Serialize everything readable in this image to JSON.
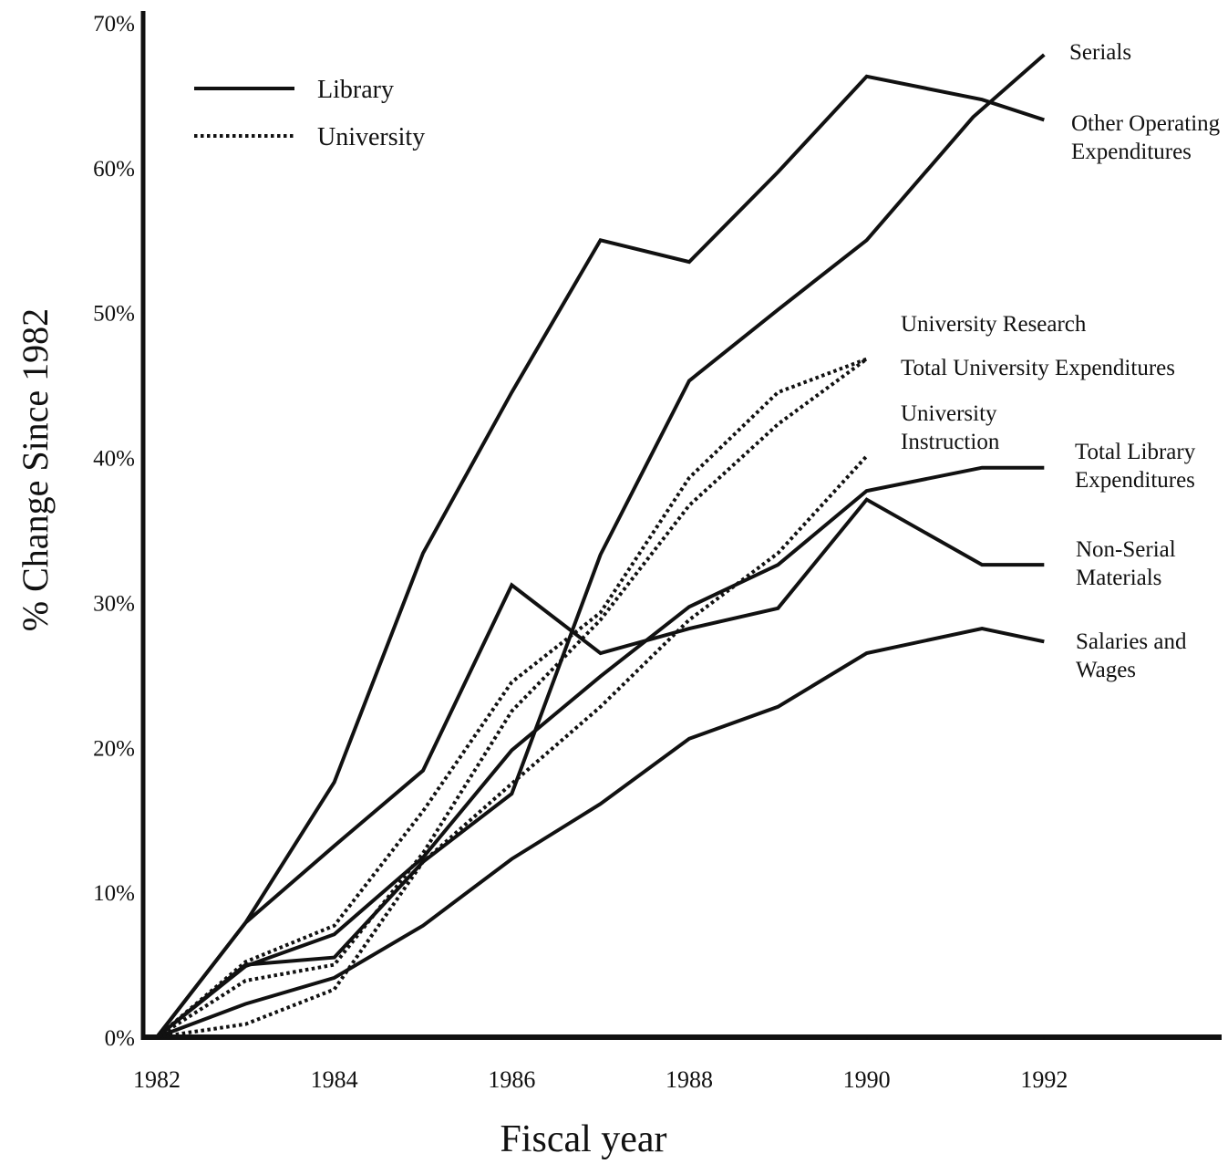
{
  "chart_data": {
    "type": "line",
    "x_label": "Fiscal year",
    "y_label": "% Change Since 1982",
    "xlim": [
      1982,
      1994
    ],
    "ylim": [
      0,
      70
    ],
    "xticks": [
      1982,
      1984,
      1986,
      1988,
      1990,
      1992
    ],
    "yticks": [
      {
        "value": 0,
        "label": "0%"
      },
      {
        "value": 10,
        "label": "10%"
      },
      {
        "value": 20,
        "label": "20%"
      },
      {
        "value": 30,
        "label": "30%"
      },
      {
        "value": 40,
        "label": "40%"
      },
      {
        "value": 50,
        "label": "50%"
      },
      {
        "value": 60,
        "label": "60%"
      },
      {
        "value": 70,
        "label": "70%"
      }
    ],
    "legend": [
      {
        "name": "Library",
        "style": "solid"
      },
      {
        "name": "University",
        "style": "dotted"
      }
    ],
    "series": [
      {
        "name": "Serials",
        "color": "#111111",
        "style": "solid",
        "x": [
          1982,
          1983,
          1984,
          1985,
          1986,
          1987,
          1988,
          1989,
          1990,
          1991.2,
          1992
        ],
        "values": [
          0,
          5,
          5.5,
          12.1,
          16.8,
          33.3,
          45.3,
          50.2,
          55,
          63.5,
          67.8
        ]
      },
      {
        "name": "Other Operating Expenditures",
        "color": "#111111",
        "style": "solid",
        "x": [
          1982,
          1983,
          1984,
          1985,
          1986,
          1987,
          1988,
          1989,
          1990,
          1991.3,
          1992
        ],
        "values": [
          0,
          7.9,
          17.6,
          33.4,
          44.5,
          55,
          53.5,
          59.7,
          66.3,
          64.7,
          63.3
        ]
      },
      {
        "name": "Total Library Expenditures",
        "color": "#111111",
        "style": "solid",
        "x": [
          1982,
          1983,
          1984,
          1985,
          1986,
          1987,
          1988,
          1989,
          1990,
          1991.3,
          1992
        ],
        "values": [
          0,
          4.9,
          7.1,
          12.4,
          19.8,
          24.9,
          29.7,
          32.6,
          37.7,
          39.3,
          39.3
        ]
      },
      {
        "name": "Non-Serial Materials",
        "color": "#111111",
        "style": "solid",
        "x": [
          1982,
          1983,
          1984,
          1985,
          1986,
          1987,
          1988,
          1989,
          1990,
          1991.3,
          1992
        ],
        "values": [
          0,
          7.9,
          13.2,
          18.4,
          31.2,
          26.5,
          28.2,
          29.6,
          37.1,
          32.6,
          32.6
        ]
      },
      {
        "name": "Salaries and Wages",
        "color": "#111111",
        "style": "solid",
        "x": [
          1982,
          1983,
          1984,
          1985,
          1986,
          1987,
          1988,
          1989,
          1990,
          1991.3,
          1992
        ],
        "values": [
          0,
          2.3,
          4.1,
          7.7,
          12.3,
          16.1,
          20.6,
          22.8,
          26.5,
          28.2,
          27.3
        ]
      },
      {
        "name": "University Research",
        "color": "#111111",
        "style": "dotted",
        "x": [
          1982,
          1983,
          1984,
          1985,
          1986,
          1987,
          1988,
          1989,
          1990
        ],
        "values": [
          0,
          5.2,
          7.7,
          15.6,
          24.5,
          29.3,
          38.6,
          44.5,
          46.8
        ]
      },
      {
        "name": "Total University Expenditures",
        "color": "#111111",
        "style": "dotted",
        "x": [
          1982,
          1983,
          1984,
          1985,
          1986,
          1987,
          1988,
          1989,
          1990
        ],
        "values": [
          0,
          3.9,
          5,
          12.7,
          22.5,
          28.8,
          36.7,
          42.3,
          46.8
        ]
      },
      {
        "name": "University Instruction",
        "color": "#111111",
        "style": "dotted",
        "x": [
          1982,
          1983,
          1984,
          1985,
          1986,
          1987,
          1988,
          1989,
          1990
        ],
        "values": [
          0,
          0.9,
          3.3,
          12.1,
          17.5,
          22.8,
          28.8,
          33.4,
          40.1
        ]
      }
    ]
  }
}
